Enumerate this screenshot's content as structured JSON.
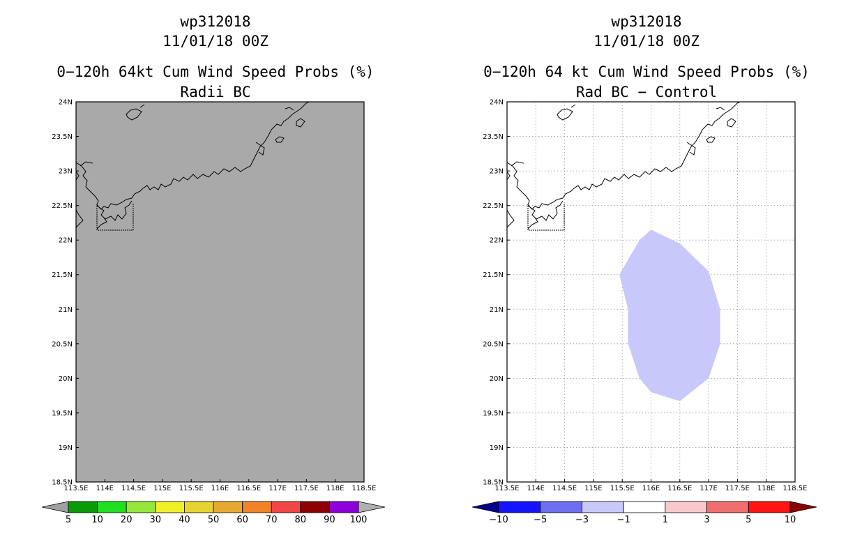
{
  "chart_data": [
    {
      "type": "heatmap",
      "storm_id": "wp312018",
      "datetime": "11/01/18 00Z",
      "title": "0−120h 64kt Cum Wind Speed Probs (%)",
      "subtitle": "Radii BC",
      "x_range": [
        113.5,
        118.5
      ],
      "y_range": [
        18.5,
        24.0
      ],
      "x_tick_labels": [
        "113.5E",
        "114E",
        "114.5E",
        "115E",
        "115.5E",
        "116E",
        "116.5E",
        "117E",
        "117.5E",
        "118E",
        "118.5E"
      ],
      "y_tick_labels": [
        "18.5N",
        "19N",
        "19.5N",
        "20N",
        "20.5N",
        "21N",
        "21.5N",
        "22N",
        "22.5N",
        "23N",
        "23.5N",
        "24N"
      ],
      "field": "all values below 5% (plotted as grey fill)",
      "fill_color": "#a9a9a9",
      "grid": false,
      "colorbar": {
        "labels": [
          "5",
          "10",
          "20",
          "30",
          "40",
          "50",
          "60",
          "70",
          "80",
          "90",
          "100"
        ],
        "colors": [
          "#a0a0a0",
          "#0a9a0a",
          "#1ee01e",
          "#96e63c",
          "#f0f028",
          "#e6d232",
          "#e6aa32",
          "#f08228",
          "#f04646",
          "#8c0000",
          "#8c00dc",
          "#b0b0b0"
        ]
      }
    },
    {
      "type": "heatmap",
      "storm_id": "wp312018",
      "datetime": "11/01/18 00Z",
      "title": "0−120h 64 kt Cum Wind Speed Probs (%)",
      "subtitle": "Rad BC − Control",
      "x_range": [
        113.5,
        118.5
      ],
      "y_range": [
        18.5,
        24.0
      ],
      "x_tick_labels": [
        "113.5E",
        "114E",
        "114.5E",
        "115E",
        "115.5E",
        "116E",
        "116.5E",
        "117E",
        "117.5E",
        "118E",
        "118.5E"
      ],
      "y_tick_labels": [
        "18.5N",
        "19N",
        "19.5N",
        "20N",
        "20.5N",
        "21N",
        "21.5N",
        "22N",
        "22.5N",
        "23N",
        "23.5N",
        "24N"
      ],
      "grid": true,
      "difference_region": {
        "range": "-3 to -1",
        "color": "#c8c8fa",
        "polygon_lonlat": [
          [
            116.0,
            22.15
          ],
          [
            116.5,
            21.95
          ],
          [
            117.0,
            21.55
          ],
          [
            117.2,
            21.0
          ],
          [
            117.2,
            20.5
          ],
          [
            117.0,
            20.0
          ],
          [
            116.5,
            19.67
          ],
          [
            116.0,
            19.8
          ],
          [
            115.8,
            20.0
          ],
          [
            115.6,
            20.5
          ],
          [
            115.6,
            21.0
          ],
          [
            115.45,
            21.5
          ],
          [
            115.8,
            22.0
          ]
        ]
      },
      "colorbar": {
        "labels": [
          "−10",
          "−5",
          "−3",
          "−1",
          "1",
          "3",
          "5",
          "10"
        ],
        "colors": [
          "#00008c",
          "#1414ff",
          "#6e6ef0",
          "#c8c8fa",
          "#ffffff",
          "#fac8c8",
          "#f06e6e",
          "#ff1414",
          "#8c0000"
        ]
      }
    }
  ]
}
